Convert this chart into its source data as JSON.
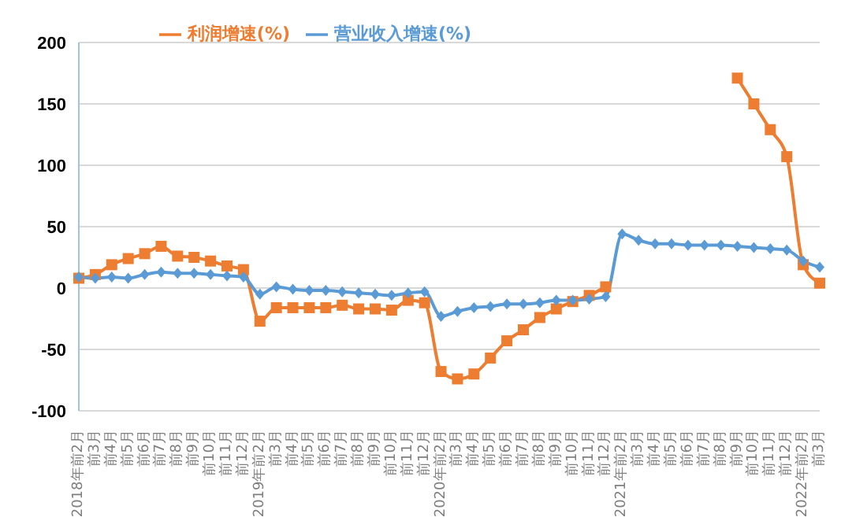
{
  "chart_data": {
    "type": "line",
    "categories": [
      "2018年前2月",
      "前3月",
      "前4月",
      "前5月",
      "前6月",
      "前7月",
      "前8月",
      "前9月",
      "前10月",
      "前11月",
      "前12月",
      "2019年前2月",
      "前3月",
      "前4月",
      "前5月",
      "前6月",
      "前7月",
      "前8月",
      "前9月",
      "前10月",
      "前11月",
      "前12月",
      "2020年前2月",
      "前3月",
      "前4月",
      "前5月",
      "前6月",
      "前7月",
      "前8月",
      "前9月",
      "前10月",
      "前11月",
      "前12月",
      "2021年前2月",
      "前3月",
      "前4月",
      "前5月",
      "前6月",
      "前7月",
      "前8月",
      "前9月",
      "前10月",
      "前11月",
      "前12月",
      "2022年前2月",
      "前3月"
    ],
    "series": [
      {
        "name": "营业收入增速(%)",
        "color": "#5b9bd5",
        "marker": "diamond",
        "values": [
          9,
          8,
          9,
          8,
          11,
          13,
          12,
          12,
          11,
          10,
          9,
          -5,
          1,
          -1,
          -2,
          -2,
          -3,
          -4,
          -5,
          -6,
          -4,
          -3,
          -23,
          -19,
          -16,
          -15,
          -13,
          -13,
          -12,
          -10,
          -10,
          -9,
          -7,
          44,
          39,
          36,
          36,
          35,
          35,
          35,
          34,
          33,
          32,
          31,
          22,
          17
        ]
      },
      {
        "name": "利润增速(%)",
        "color": "#ed7d31",
        "marker": "square",
        "values": [
          8,
          11,
          19,
          24,
          28,
          34,
          26,
          25,
          22,
          18,
          15,
          -27,
          -16,
          -16,
          -16,
          -16,
          -14,
          -17,
          -17,
          -18,
          -10,
          -12,
          -68,
          -74,
          -70,
          -57,
          -43,
          -34,
          -24,
          -17,
          -11,
          -6,
          1,
          null,
          null,
          null,
          null,
          null,
          null,
          null,
          171,
          150,
          129,
          107,
          19,
          4
        ]
      }
    ],
    "ylim": [
      -100,
      200
    ],
    "yticks": [
      -100,
      -50,
      0,
      50,
      100,
      150,
      200
    ],
    "grid": "y",
    "legend": "top"
  }
}
